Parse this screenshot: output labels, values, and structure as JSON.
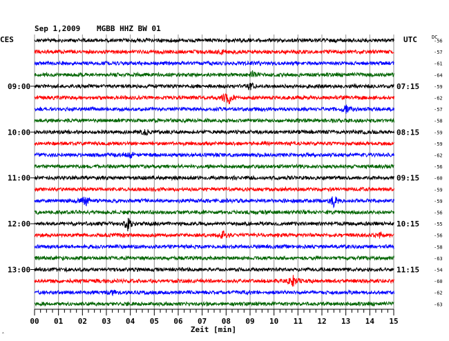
{
  "header": {
    "date": "Sep 1,2009",
    "station": "MGBB HHZ BW 01"
  },
  "left_timezone": "CES",
  "right_timezone": "UTC",
  "dc_header": "DC",
  "colors": {
    "trace_cycle": [
      "#000000",
      "#ff0000",
      "#0000ff",
      "#006400"
    ],
    "grid": "#909090",
    "frame": "#000000"
  },
  "chart_data": {
    "type": "helicorder",
    "xlabel": "Zeit [min]",
    "x_ticks": [
      "00",
      "01",
      "02",
      "03",
      "04",
      "05",
      "06",
      "07",
      "08",
      "09",
      "10",
      "11",
      "12",
      "13",
      "14",
      "15"
    ],
    "xlim": [
      0,
      15
    ],
    "grid": true,
    "row_minutes": 15,
    "left_hour_labels": [
      {
        "row": 4,
        "label": "09:00"
      },
      {
        "row": 8,
        "label": "10:00"
      },
      {
        "row": 12,
        "label": "11:00"
      },
      {
        "row": 16,
        "label": "12:00"
      },
      {
        "row": 20,
        "label": "13:00"
      }
    ],
    "right_hour_labels": [
      {
        "row": 4,
        "label": "07:15"
      },
      {
        "row": 8,
        "label": "08:15"
      },
      {
        "row": 12,
        "label": "09:15"
      },
      {
        "row": 16,
        "label": "10:15"
      },
      {
        "row": 20,
        "label": "11:15"
      }
    ],
    "dc_offsets": [
      "-56",
      "-57",
      "-61",
      "-64",
      "-59",
      "-62",
      "-57",
      "-58",
      "-59",
      "-59",
      "-62",
      "-56",
      "-60",
      "-59",
      "-59",
      "-56",
      "-55",
      "-56",
      "-58",
      "-63",
      "-54",
      "-60",
      "-62",
      "-63"
    ],
    "events": [
      {
        "row": 1,
        "minute": 7.8,
        "amp": 0.5
      },
      {
        "row": 3,
        "minute": 9.1,
        "amp": 0.6
      },
      {
        "row": 4,
        "minute": 9.0,
        "amp": 0.8
      },
      {
        "row": 5,
        "minute": 8.1,
        "amp": 1.2
      },
      {
        "row": 5,
        "minute": 7.95,
        "amp": 0.6
      },
      {
        "row": 6,
        "minute": 13.0,
        "amp": 0.7
      },
      {
        "row": 8,
        "minute": 4.6,
        "amp": 0.5
      },
      {
        "row": 10,
        "minute": 4.0,
        "amp": 0.5
      },
      {
        "row": 14,
        "minute": 2.1,
        "amp": 1.2
      },
      {
        "row": 14,
        "minute": 12.5,
        "amp": 1.2
      },
      {
        "row": 16,
        "minute": 3.9,
        "amp": 1.4
      },
      {
        "row": 17,
        "minute": 7.9,
        "amp": 1.1
      },
      {
        "row": 17,
        "minute": 14.4,
        "amp": 0.5
      },
      {
        "row": 21,
        "minute": 10.8,
        "amp": 1.1
      },
      {
        "row": 22,
        "minute": 3.3,
        "amp": 0.4
      }
    ]
  },
  "corner_mark": "ˆ"
}
